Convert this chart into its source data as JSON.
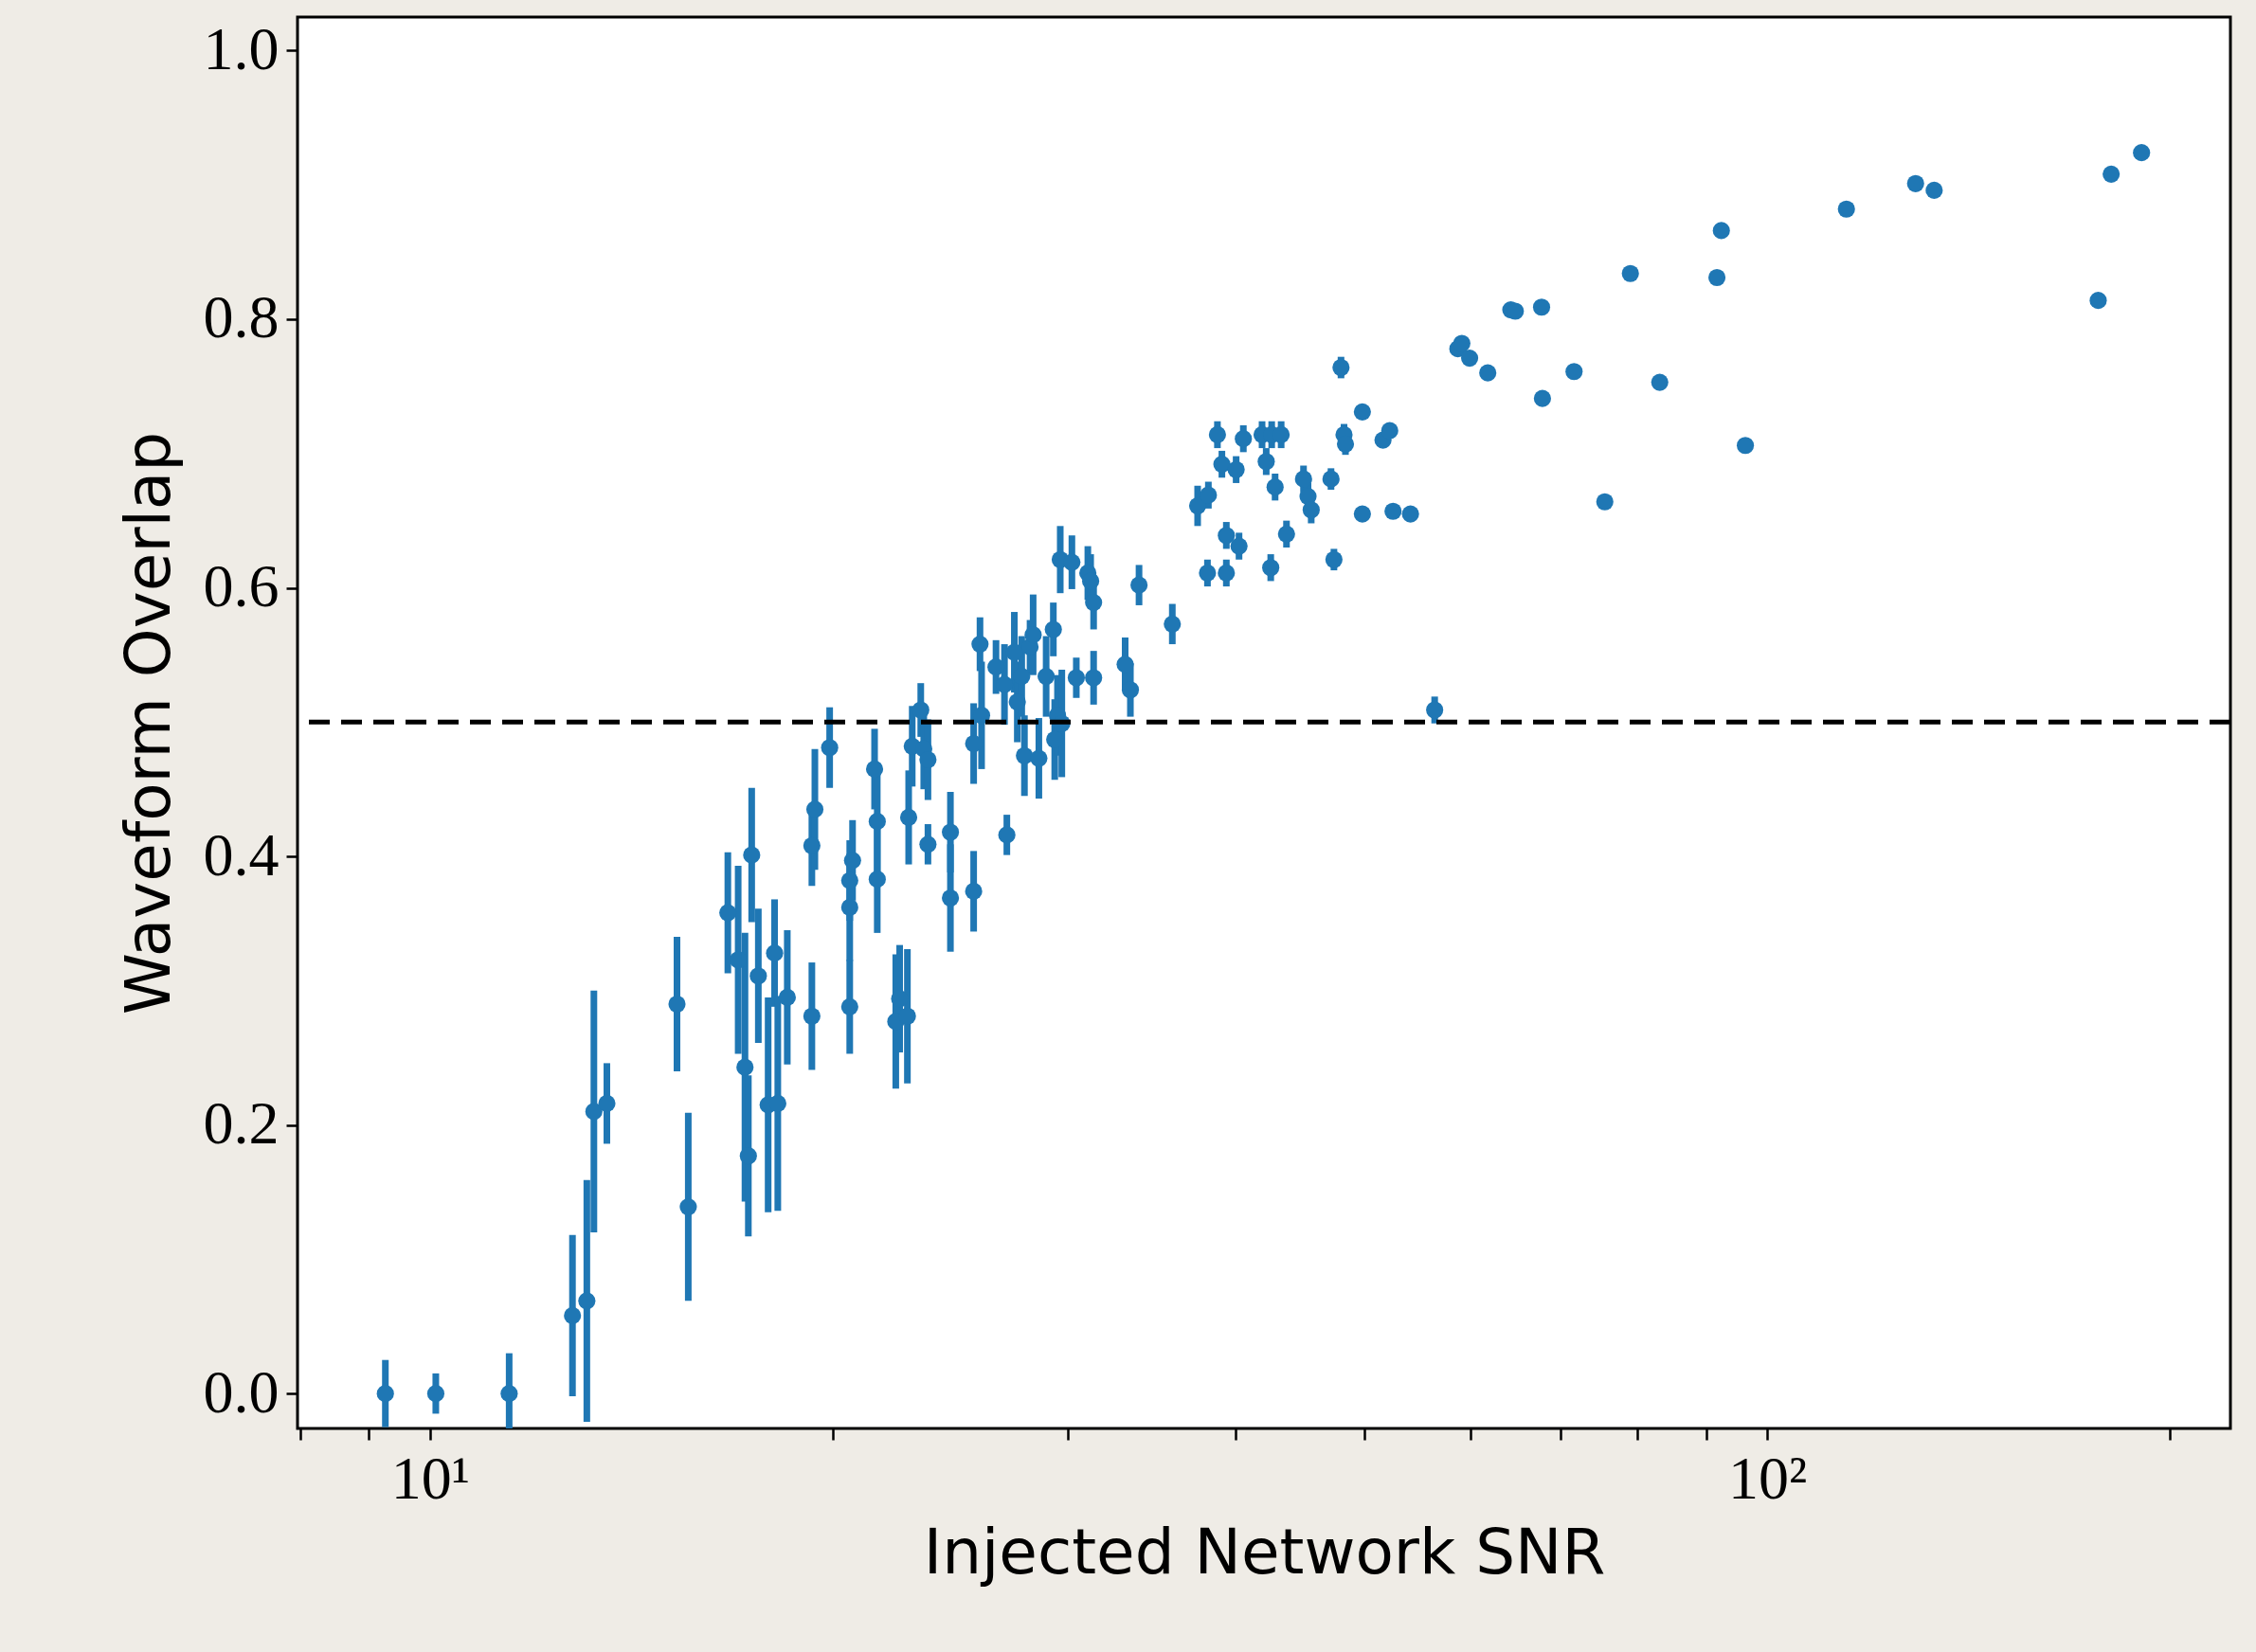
{
  "chart_data": {
    "type": "scatter",
    "xlabel": "Injected Network SNR",
    "ylabel": "Waveform Overlap",
    "log": "x",
    "grid": false,
    "marker": "circle",
    "xlim": [
      7.96,
      222
    ],
    "ylim": [
      -0.026,
      1.025
    ],
    "xticks": [
      {
        "value": 8,
        "label": null
      },
      {
        "value": 9,
        "label": null
      },
      {
        "value": 10,
        "label": "10¹"
      },
      {
        "value": 20,
        "label": null
      },
      {
        "value": 30,
        "label": null
      },
      {
        "value": 40,
        "label": null
      },
      {
        "value": 50,
        "label": null
      },
      {
        "value": 60,
        "label": null
      },
      {
        "value": 70,
        "label": null
      },
      {
        "value": 80,
        "label": null
      },
      {
        "value": 90,
        "label": null
      },
      {
        "value": 100,
        "label": "10²"
      },
      {
        "value": 200,
        "label": null
      }
    ],
    "yticks": [
      {
        "value": 0,
        "label": "0.0"
      },
      {
        "value": 0.2,
        "label": "0.2"
      },
      {
        "value": 0.4,
        "label": "0.4"
      },
      {
        "value": 0.6,
        "label": "0.6"
      },
      {
        "value": 0.8,
        "label": "0.8"
      },
      {
        "value": 1,
        "label": "1.0"
      }
    ],
    "ref_lines": [
      {
        "axis": "y",
        "value": 0.5,
        "color": "#000000",
        "line_style": "dashed"
      }
    ],
    "series": [
      {
        "color": "#1f77b4",
        "x": [
          9.26,
          10.1,
          11.46,
          12.78,
          13.1,
          13.26,
          13.56,
          15.3,
          15.6,
          16.7,
          17.0,
          17.2,
          17.3,
          17.4,
          17.6,
          17.9,
          18.1,
          18.2,
          18.5,
          19.3,
          19.3,
          19.4,
          19.9,
          20.6,
          20.6,
          20.6,
          20.7,
          21.5,
          21.6,
          21.6,
          22.3,
          22.45,
          22.75,
          22.8,
          22.94,
          23.28,
          23.4,
          23.57,
          23.57,
          24.5,
          24.5,
          25.5,
          25.5,
          25.78,
          25.85,
          26.5,
          26.89,
          27.0,
          27.35,
          27.49,
          27.7,
          27.83,
          28.1,
          28.25,
          28.53,
          28.89,
          29.25,
          29.32,
          29.46,
          29.68,
          29.6,
          30.2,
          30.43,
          31.04,
          31.19,
          31.35,
          31.35,
          33.1,
          33.4,
          33.9,
          35.9,
          37.5,
          38.2,
          38.14,
          38.8,
          39.1,
          39.4,
          39.4,
          40.07,
          40.27,
          40.57,
          41.9,
          42.2,
          42.53,
          42.6,
          42.85,
          43.3,
          43.7,
          45.0,
          45.35,
          45.6,
          47.18,
          47.42,
          48.0,
          48.25,
          48.37,
          49.8,
          49.8,
          51.6,
          52.2,
          52.5,
          54.1,
          56.4,
          58.7,
          59.1,
          59.9,
          61.8,
          64.3,
          64.8,
          67.8,
          67.9,
          71.7,
          75.6,
          79.0,
          83.1,
          91.7,
          92.4,
          96.3,
          114.6,
          129.1,
          133.3,
          176.8,
          180.8,
          190.5
        ],
        "values": [
          0.0,
          0.0,
          0.0,
          0.058,
          0.069,
          0.21,
          0.216,
          0.29,
          0.139,
          0.358,
          0.323,
          0.243,
          0.177,
          0.401,
          0.311,
          0.215,
          0.328,
          0.216,
          0.295,
          0.281,
          0.408,
          0.435,
          0.481,
          0.382,
          0.362,
          0.288,
          0.397,
          0.465,
          0.426,
          0.383,
          0.277,
          0.294,
          0.281,
          0.429,
          0.482,
          0.509,
          0.48,
          0.472,
          0.409,
          0.369,
          0.418,
          0.374,
          0.484,
          0.558,
          0.505,
          0.541,
          0.528,
          0.416,
          0.552,
          0.515,
          0.534,
          0.475,
          0.556,
          0.565,
          0.473,
          0.534,
          0.569,
          0.487,
          0.505,
          0.499,
          0.621,
          0.619,
          0.533,
          0.611,
          0.605,
          0.589,
          0.533,
          0.543,
          0.524,
          0.602,
          0.573,
          0.661,
          0.669,
          0.611,
          0.714,
          0.692,
          0.639,
          0.611,
          0.688,
          0.631,
          0.711,
          0.714,
          0.694,
          0.615,
          0.714,
          0.675,
          0.714,
          0.64,
          0.681,
          0.668,
          0.658,
          0.681,
          0.621,
          0.764,
          0.714,
          0.707,
          0.731,
          0.655,
          0.71,
          0.717,
          0.657,
          0.655,
          0.509,
          0.778,
          0.782,
          0.771,
          0.76,
          0.807,
          0.806,
          0.809,
          0.741,
          0.761,
          0.664,
          0.834,
          0.753,
          0.831,
          0.866,
          0.706,
          0.882,
          0.901,
          0.896,
          0.814,
          0.908,
          0.924
        ],
        "errors": [
          0.025,
          0.015,
          0.03,
          0.06,
          0.09,
          0.09,
          0.03,
          0.05,
          0.07,
          0.045,
          0.07,
          0.1,
          0.06,
          0.05,
          0.05,
          0.08,
          0.04,
          0.08,
          0.05,
          0.04,
          0.03,
          0.045,
          0.03,
          0.03,
          0.04,
          0.035,
          0.03,
          0.03,
          0.04,
          0.04,
          0.05,
          0.04,
          0.05,
          0.035,
          0.03,
          0.02,
          0.03,
          0.03,
          0.015,
          0.04,
          0.03,
          0.03,
          0.03,
          0.02,
          0.04,
          0.02,
          0.03,
          0.015,
          0.03,
          0.03,
          0.03,
          0.03,
          0.02,
          0.03,
          0.03,
          0.03,
          0.02,
          0.03,
          0.03,
          0.04,
          0.025,
          0.02,
          0.015,
          0.02,
          0.02,
          0.02,
          0.02,
          0.02,
          0.02,
          0.015,
          0.015,
          0.015,
          0.01,
          0.01,
          0.01,
          0.01,
          0.01,
          0.01,
          0.01,
          0.01,
          0.01,
          0.01,
          0.01,
          0.01,
          0.01,
          0.01,
          0.01,
          0.01,
          0.01,
          0.01,
          0.01,
          0.008,
          0.008,
          0.008,
          0.008,
          0.008,
          null,
          null,
          null,
          null,
          null,
          null,
          0.01,
          null,
          null,
          null,
          null,
          null,
          null,
          null,
          null,
          null,
          null,
          null,
          null,
          null,
          null,
          null,
          null,
          null,
          null,
          null,
          null,
          null
        ]
      }
    ]
  }
}
